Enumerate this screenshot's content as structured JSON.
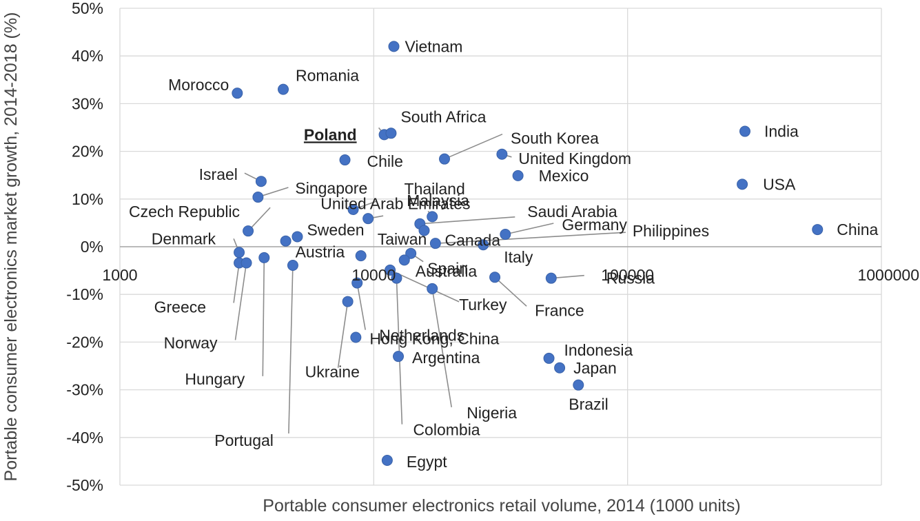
{
  "chart_data": {
    "type": "scatter",
    "x_scale": "log",
    "xlim": [
      1000,
      1000000
    ],
    "ylim": [
      -50,
      50
    ],
    "grid": true,
    "legend": "none",
    "xlabel": "Portable consumer electronics retail volume, 2014 (1000 units)",
    "ylabel": "Portable consumer electronics market growth, 2014-2018 (%)",
    "x_ticks": [
      "1000",
      "10000",
      "100000",
      "1000000"
    ],
    "y_ticks": [
      "50%",
      "40%",
      "30%",
      "20%",
      "10%",
      "0%",
      "-10%",
      "-20%",
      "-30%",
      "-40%",
      "-50%"
    ],
    "marker_color": "#4472c4",
    "highlight": "Poland",
    "points": [
      {
        "name": "Vietnam",
        "x": 12000,
        "y": 42
      },
      {
        "name": "Morocco",
        "x": 2900,
        "y": 32.2
      },
      {
        "name": "Romania",
        "x": 4400,
        "y": 33
      },
      {
        "name": "Poland",
        "x": 11000,
        "y": 23.5
      },
      {
        "name": "South Africa",
        "x": 11700,
        "y": 23.8
      },
      {
        "name": "India",
        "x": 290000,
        "y": 24.2
      },
      {
        "name": "South Korea",
        "x": 19000,
        "y": 18.4
      },
      {
        "name": "United Kingdom",
        "x": 32000,
        "y": 19.4
      },
      {
        "name": "Chile",
        "x": 7700,
        "y": 18.2
      },
      {
        "name": "Mexico",
        "x": 37000,
        "y": 14.9
      },
      {
        "name": "USA",
        "x": 283000,
        "y": 13.1
      },
      {
        "name": "Israel",
        "x": 3600,
        "y": 13.7
      },
      {
        "name": "Singapore",
        "x": 3500,
        "y": 10.4
      },
      {
        "name": "Thailand",
        "x": 8300,
        "y": 7.8
      },
      {
        "name": "Malaysia",
        "x": 9500,
        "y": 5.9
      },
      {
        "name": "United Arab Emirates",
        "x": 17000,
        "y": 6.3
      },
      {
        "name": "Saudi Arabia",
        "x": 15200,
        "y": 4.8
      },
      {
        "name": "Czech Republic",
        "x": 3200,
        "y": 3.3
      },
      {
        "name": "Canada",
        "x": 15800,
        "y": 3.4
      },
      {
        "name": "Germany",
        "x": 33000,
        "y": 2.6
      },
      {
        "name": "China",
        "x": 560000,
        "y": 3.6
      },
      {
        "name": "Sweden",
        "x": 5000,
        "y": 2.1
      },
      {
        "name": "Austria",
        "x": 4500,
        "y": 1.2
      },
      {
        "name": "Philippines",
        "x": 17500,
        "y": 0.7
      },
      {
        "name": "Italy",
        "x": 27000,
        "y": 0.4
      },
      {
        "name": "Denmark",
        "x": 2950,
        "y": -1.2
      },
      {
        "name": "Taiwan",
        "x": 8900,
        "y": -1.9
      },
      {
        "name": "Spain",
        "x": 14000,
        "y": -1.4
      },
      {
        "name": "Greece",
        "x": 2950,
        "y": -3.4
      },
      {
        "name": "Norway",
        "x": 3150,
        "y": -3.4
      },
      {
        "name": "Hungary",
        "x": 3700,
        "y": -2.3
      },
      {
        "name": "Portugal",
        "x": 4800,
        "y": -3.9
      },
      {
        "name": "Australia",
        "x": 13200,
        "y": -2.8
      },
      {
        "name": "Turkey",
        "x": 11600,
        "y": -4.9
      },
      {
        "name": "Colombia",
        "x": 12300,
        "y": -6.6
      },
      {
        "name": "Nigeria",
        "x": 17000,
        "y": -8.8
      },
      {
        "name": "France",
        "x": 30000,
        "y": -6.4
      },
      {
        "name": "Russia",
        "x": 50000,
        "y": -6.6
      },
      {
        "name": "Netherlands",
        "x": 8600,
        "y": -7.6
      },
      {
        "name": "Ukraine",
        "x": 7900,
        "y": -11.5
      },
      {
        "name": "Hong Kong, China",
        "x": 8500,
        "y": -19
      },
      {
        "name": "Argentina",
        "x": 12500,
        "y": -23
      },
      {
        "name": "Indonesia",
        "x": 49000,
        "y": -23.4
      },
      {
        "name": "Japan",
        "x": 54000,
        "y": -25.4
      },
      {
        "name": "Brazil",
        "x": 64000,
        "y": -29
      },
      {
        "name": "Egypt",
        "x": 11300,
        "y": -44.8
      }
    ]
  }
}
